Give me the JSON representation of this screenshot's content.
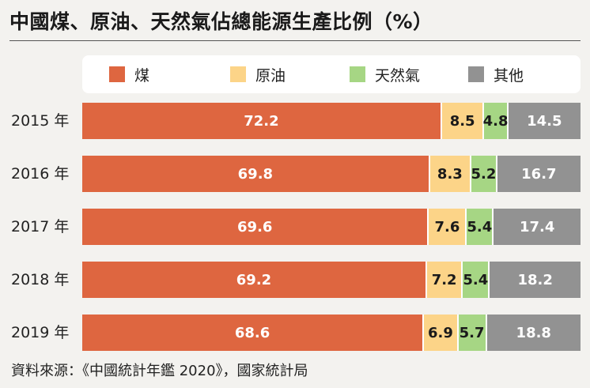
{
  "title": "中國煤、原油、天然氣佔總能源生產比例（%）",
  "source": "資料來源：《中國統計年鑑 2020》，國家統計局",
  "colors": {
    "coal": "#de6640",
    "oil": "#fcd488",
    "gas": "#a6d684",
    "other": "#929292"
  },
  "chart_data": {
    "type": "bar",
    "orientation": "horizontal",
    "stacked": true,
    "normalized_percent": true,
    "title": "中國煤、原油、天然氣佔總能源生產比例（%）",
    "xlabel": "",
    "ylabel": "",
    "legend_position": "top",
    "grid": false,
    "categories": [
      "2015 年",
      "2016 年",
      "2017 年",
      "2018 年",
      "2019 年"
    ],
    "series": [
      {
        "name": "煤",
        "key": "coal",
        "values": [
          72.2,
          69.8,
          69.6,
          69.2,
          68.6
        ]
      },
      {
        "name": "原油",
        "key": "oil",
        "values": [
          8.5,
          8.3,
          7.6,
          7.2,
          6.9
        ]
      },
      {
        "name": "天然氣",
        "key": "gas",
        "values": [
          4.8,
          5.2,
          5.4,
          5.4,
          5.7
        ]
      },
      {
        "name": "其他",
        "key": "other",
        "values": [
          14.5,
          16.7,
          17.4,
          18.2,
          18.8
        ]
      }
    ]
  }
}
